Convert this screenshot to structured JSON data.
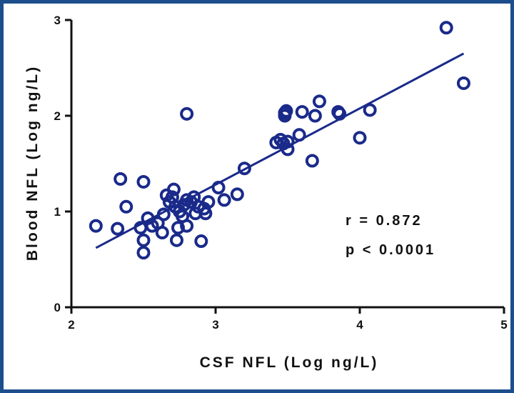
{
  "chart_data": {
    "type": "scatter",
    "title": "",
    "xlabel": "CSF NFL (Log ng/L)",
    "ylabel": "Blood NFL (Log ng/L)",
    "xlim": [
      2,
      5
    ],
    "ylim": [
      0,
      3
    ],
    "xticks": [
      "2",
      "3",
      "4",
      "5"
    ],
    "yticks": [
      "0",
      "1",
      "2",
      "3"
    ],
    "grid": false,
    "legend": "none",
    "marker_color": "#1a2a8a",
    "annotations": [
      "r = 0.872",
      "p < 0.0001"
    ],
    "fit_line": {
      "x": [
        2.17,
        4.72
      ],
      "y": [
        0.62,
        2.65
      ]
    },
    "points": [
      {
        "x": 2.17,
        "y": 0.85
      },
      {
        "x": 2.32,
        "y": 0.82
      },
      {
        "x": 2.34,
        "y": 1.34
      },
      {
        "x": 2.38,
        "y": 1.05
      },
      {
        "x": 2.48,
        "y": 0.83
      },
      {
        "x": 2.5,
        "y": 0.7
      },
      {
        "x": 2.5,
        "y": 0.57
      },
      {
        "x": 2.5,
        "y": 1.31
      },
      {
        "x": 2.53,
        "y": 0.93
      },
      {
        "x": 2.56,
        "y": 0.85
      },
      {
        "x": 2.6,
        "y": 0.88
      },
      {
        "x": 2.63,
        "y": 0.78
      },
      {
        "x": 2.64,
        "y": 0.97
      },
      {
        "x": 2.66,
        "y": 1.17
      },
      {
        "x": 2.68,
        "y": 1.1
      },
      {
        "x": 2.7,
        "y": 1.15
      },
      {
        "x": 2.71,
        "y": 1.23
      },
      {
        "x": 2.72,
        "y": 1.05
      },
      {
        "x": 2.73,
        "y": 0.7
      },
      {
        "x": 2.74,
        "y": 0.83
      },
      {
        "x": 2.75,
        "y": 1.0
      },
      {
        "x": 2.77,
        "y": 0.95
      },
      {
        "x": 2.78,
        "y": 1.07
      },
      {
        "x": 2.8,
        "y": 1.12
      },
      {
        "x": 2.8,
        "y": 0.85
      },
      {
        "x": 2.8,
        "y": 2.02
      },
      {
        "x": 2.83,
        "y": 1.1
      },
      {
        "x": 2.85,
        "y": 1.15
      },
      {
        "x": 2.86,
        "y": 0.98
      },
      {
        "x": 2.88,
        "y": 1.05
      },
      {
        "x": 2.9,
        "y": 0.69
      },
      {
        "x": 2.92,
        "y": 1.03
      },
      {
        "x": 2.93,
        "y": 0.98
      },
      {
        "x": 2.95,
        "y": 1.1
      },
      {
        "x": 3.02,
        "y": 1.25
      },
      {
        "x": 3.06,
        "y": 1.12
      },
      {
        "x": 3.15,
        "y": 1.18
      },
      {
        "x": 3.2,
        "y": 1.45
      },
      {
        "x": 3.42,
        "y": 1.72
      },
      {
        "x": 3.45,
        "y": 1.75
      },
      {
        "x": 3.47,
        "y": 1.71
      },
      {
        "x": 3.48,
        "y": 2.03
      },
      {
        "x": 3.48,
        "y": 2.0
      },
      {
        "x": 3.49,
        "y": 2.05
      },
      {
        "x": 3.5,
        "y": 1.65
      },
      {
        "x": 3.5,
        "y": 1.73
      },
      {
        "x": 3.58,
        "y": 1.8
      },
      {
        "x": 3.6,
        "y": 2.04
      },
      {
        "x": 3.67,
        "y": 1.53
      },
      {
        "x": 3.69,
        "y": 2.0
      },
      {
        "x": 3.72,
        "y": 2.15
      },
      {
        "x": 3.85,
        "y": 2.04
      },
      {
        "x": 3.86,
        "y": 2.02
      },
      {
        "x": 4.0,
        "y": 1.77
      },
      {
        "x": 4.07,
        "y": 2.06
      },
      {
        "x": 4.6,
        "y": 2.92
      },
      {
        "x": 4.72,
        "y": 2.34
      }
    ]
  }
}
